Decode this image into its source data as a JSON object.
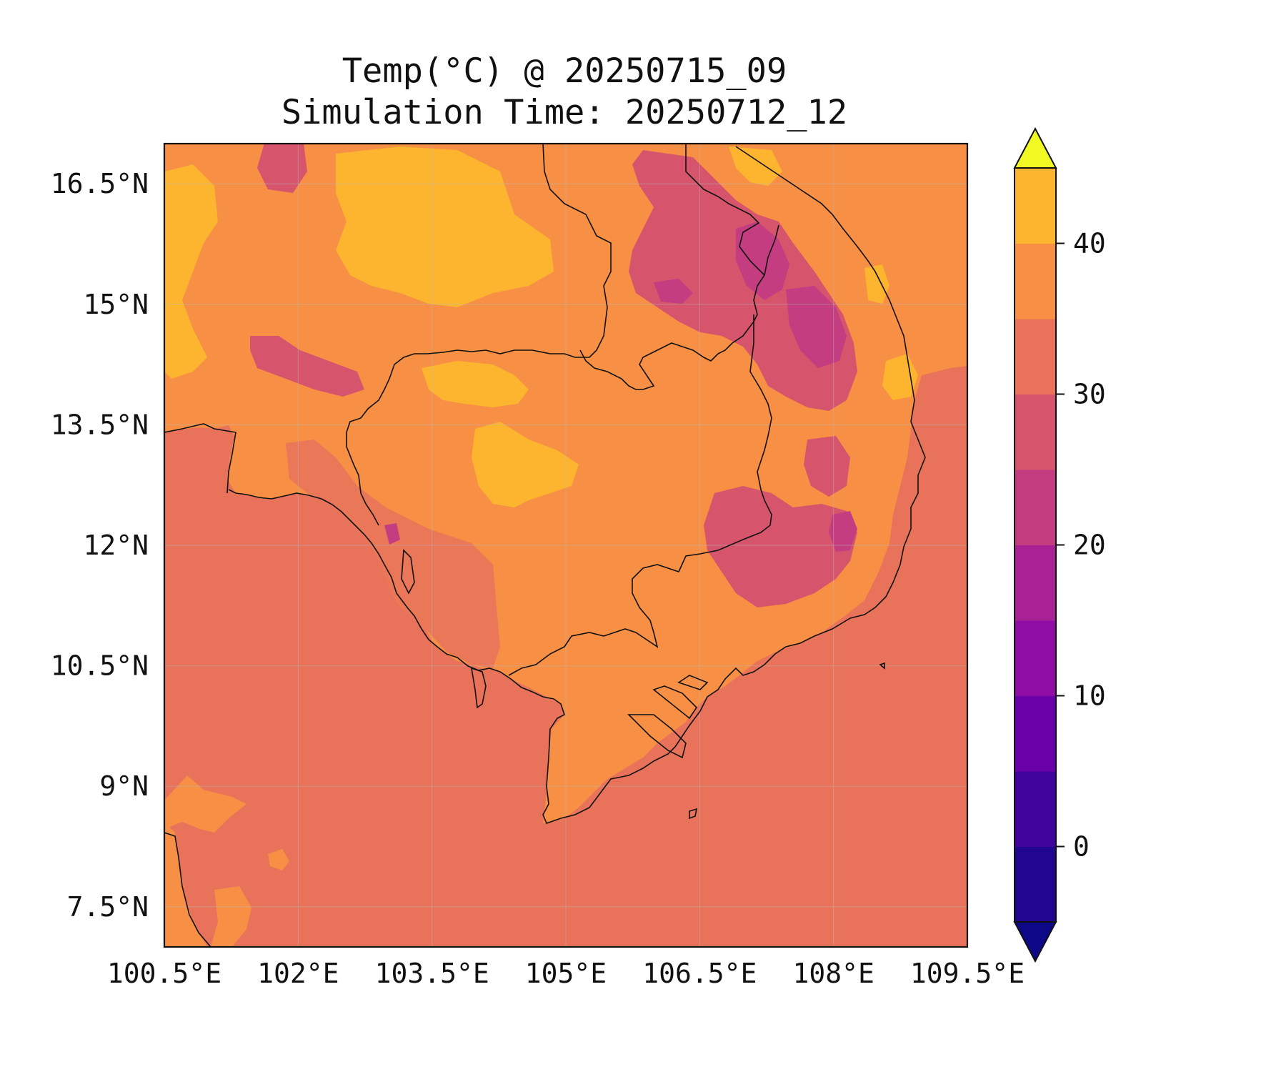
{
  "title": "Temp(°C) @ 20250715_09",
  "subtitle": "Simulation Time: 20250712_12",
  "map": {
    "region": "Cambodia / southern Vietnam / Gulf of Thailand",
    "lon_range": [
      100.5,
      109.5
    ],
    "lat_range": [
      7.0,
      17.0
    ],
    "x_ticks": [
      "100.5°E",
      "102°E",
      "103.5°E",
      "105°E",
      "106.5°E",
      "108°E",
      "109.5°E"
    ],
    "y_ticks": [
      "16.5°N",
      "15°N",
      "13.5°N",
      "12°N",
      "10.5°N",
      "9°N",
      "7.5°N"
    ],
    "gridlines": true,
    "coastlines": true,
    "borders": true
  },
  "colorbar": {
    "min": -5,
    "max": 45,
    "step": 5,
    "extend": "both",
    "tick_values": [
      0,
      10,
      20,
      30,
      40
    ],
    "tick_labels": [
      "0",
      "10",
      "20",
      "30",
      "40"
    ],
    "colors": [
      "#0d0887",
      "#220690",
      "#41049d",
      "#6a00a8",
      "#8f0da4",
      "#a82296",
      "#c33d80",
      "#d6556d",
      "#e8735a",
      "#f79044",
      "#fdb42f",
      "#f0dc23",
      "#f0f921"
    ]
  },
  "palette": {
    "sea": "#e8735a",
    "land_base": "#f79044",
    "hot": "#fdb42f",
    "cool": "#d6556d",
    "coolest": "#c33d80"
  }
}
